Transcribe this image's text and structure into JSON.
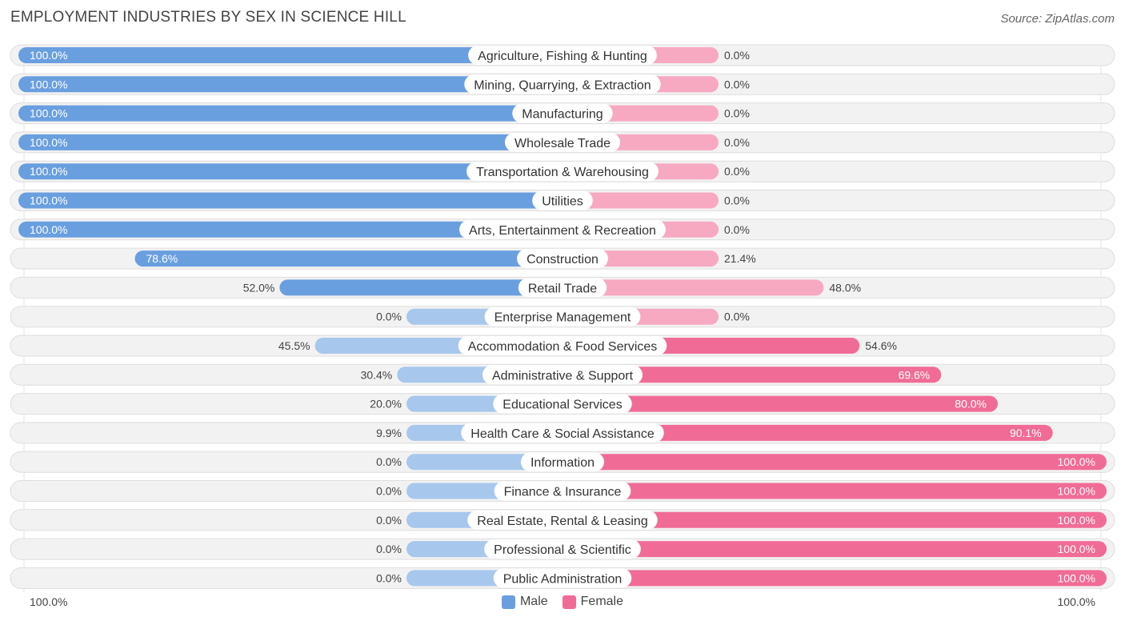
{
  "title": "EMPLOYMENT INDUSTRIES BY SEX IN SCIENCE HILL",
  "source": "Source: ZipAtlas.com",
  "colors": {
    "male_strong": "#6a9fdf",
    "male_light": "#a8c7ec",
    "female_strong": "#f06c96",
    "female_light": "#f7a9c2",
    "row_bg": "#f2f2f2",
    "row_border": "#dedede"
  },
  "axis": {
    "left_label": "100.0%",
    "right_label": "100.0%"
  },
  "legend": {
    "male": "Male",
    "female": "Female"
  },
  "chart_data": {
    "type": "bar",
    "orientation": "horizontal-diverging",
    "title": "EMPLOYMENT INDUSTRIES BY SEX IN SCIENCE HILL",
    "xlim": [
      -100,
      100
    ],
    "categories": [
      "Agriculture, Fishing & Hunting",
      "Mining, Quarrying, & Extraction",
      "Manufacturing",
      "Wholesale Trade",
      "Transportation & Warehousing",
      "Utilities",
      "Arts, Entertainment & Recreation",
      "Construction",
      "Retail Trade",
      "Enterprise Management",
      "Accommodation & Food Services",
      "Administrative & Support",
      "Educational Services",
      "Health Care & Social Assistance",
      "Information",
      "Finance & Insurance",
      "Real Estate, Rental & Leasing",
      "Professional & Scientific",
      "Public Administration"
    ],
    "series": [
      {
        "name": "Male",
        "values": [
          100.0,
          100.0,
          100.0,
          100.0,
          100.0,
          100.0,
          100.0,
          78.6,
          52.0,
          0.0,
          45.5,
          30.4,
          20.0,
          9.9,
          0.0,
          0.0,
          0.0,
          0.0,
          0.0
        ],
        "labels": [
          "100.0%",
          "100.0%",
          "100.0%",
          "100.0%",
          "100.0%",
          "100.0%",
          "100.0%",
          "78.6%",
          "52.0%",
          "0.0%",
          "45.5%",
          "30.4%",
          "20.0%",
          "9.9%",
          "0.0%",
          "0.0%",
          "0.0%",
          "0.0%",
          "0.0%"
        ]
      },
      {
        "name": "Female",
        "values": [
          0.0,
          0.0,
          0.0,
          0.0,
          0.0,
          0.0,
          0.0,
          21.4,
          48.0,
          0.0,
          54.6,
          69.6,
          80.0,
          90.1,
          100.0,
          100.0,
          100.0,
          100.0,
          100.0
        ],
        "labels": [
          "0.0%",
          "0.0%",
          "0.0%",
          "0.0%",
          "0.0%",
          "0.0%",
          "0.0%",
          "21.4%",
          "48.0%",
          "0.0%",
          "54.6%",
          "69.6%",
          "80.0%",
          "90.1%",
          "100.0%",
          "100.0%",
          "100.0%",
          "100.0%",
          "100.0%"
        ]
      }
    ],
    "xlabel": "",
    "ylabel": "",
    "legend_position": "bottom-center"
  }
}
